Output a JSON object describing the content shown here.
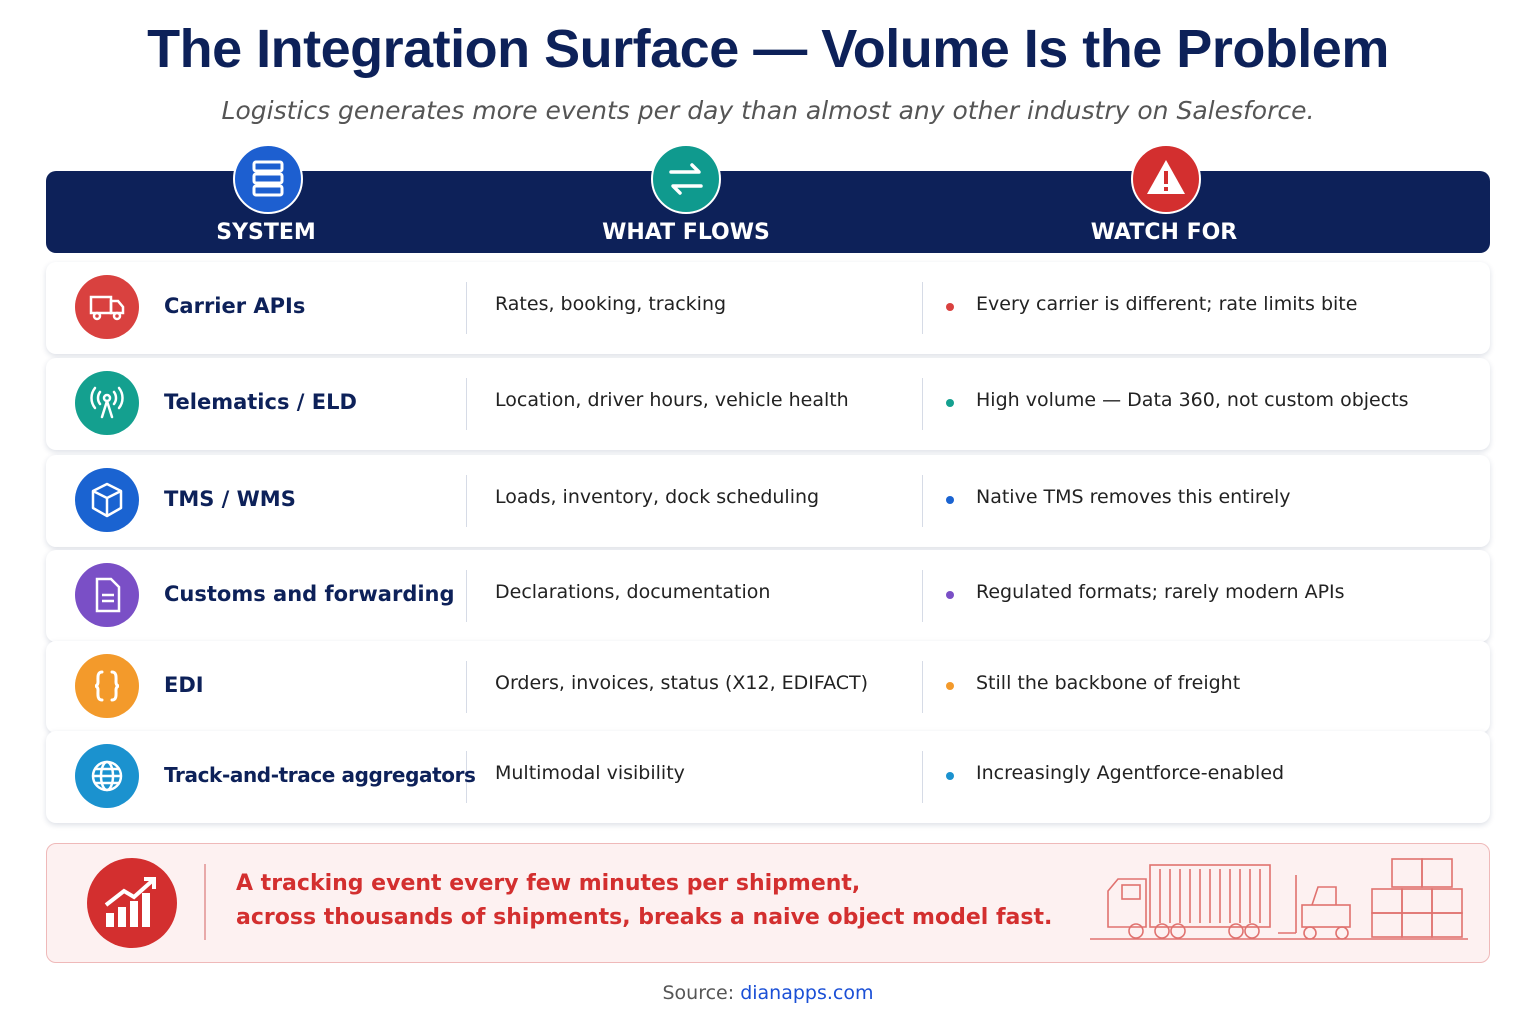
{
  "header": {
    "title": "The Integration Surface — Volume Is the Problem",
    "subtitle": "Logistics generates more events per day than almost any other industry on Salesforce."
  },
  "table": {
    "columns": [
      "SYSTEM",
      "WHAT FLOWS",
      "WATCH FOR"
    ],
    "rows": [
      [
        "Carrier APIs",
        "Rates, booking, tracking",
        "Every carrier is different; rate limits bite"
      ],
      [
        "Telematics / ELD",
        "Location, driver hours, vehicle health",
        "High volume — Data 360, not custom objects"
      ],
      [
        "TMS / WMS",
        "Loads, inventory, dock scheduling",
        "Native TMS removes this entirely"
      ],
      [
        "Customs and forwarding",
        "Declarations, documentation",
        "Regulated formats; rarely modern APIs"
      ],
      [
        "EDI",
        "Orders, invoices, status (X12, EDIFACT)",
        "Still the backbone of freight"
      ],
      [
        "Track-and-trace aggregators",
        "Multimodal visibility",
        "Increasingly Agentforce-enabled"
      ]
    ]
  },
  "callout": {
    "lines": [
      "A tracking event every few minutes per shipment,",
      "across thousands of shipments, breaks a naive object model fast."
    ]
  },
  "source": {
    "label": "Source:",
    "link": "dianapps.com"
  }
}
